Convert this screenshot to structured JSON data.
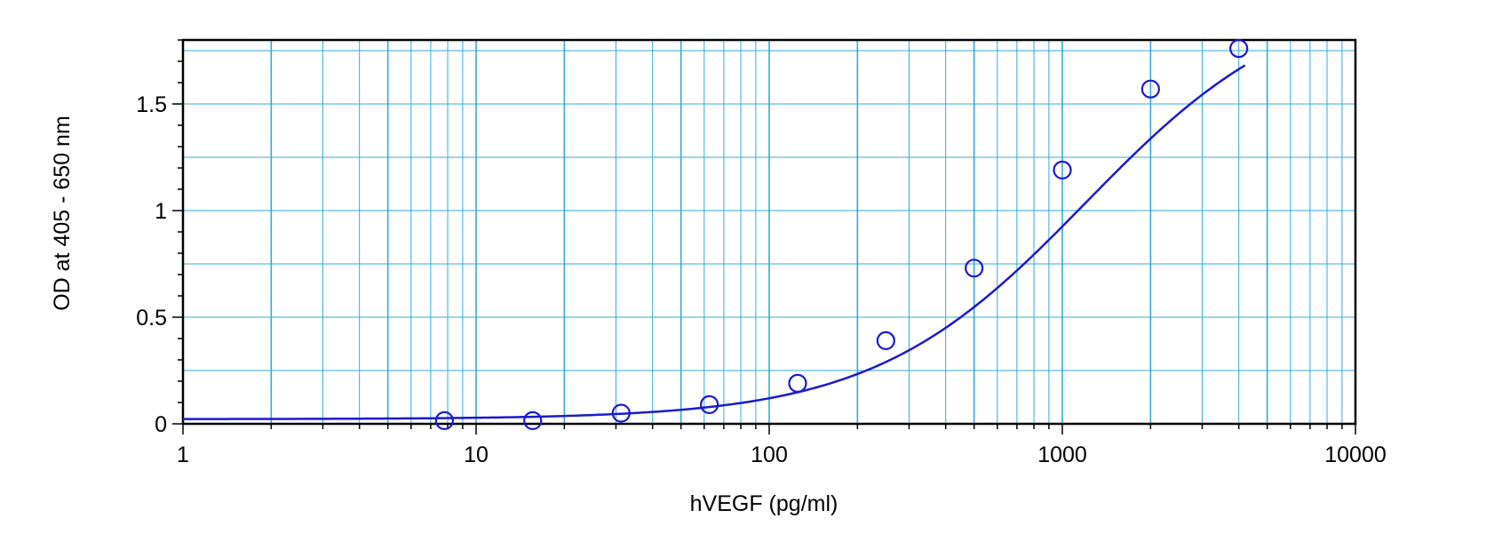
{
  "chart_data": {
    "type": "scatter",
    "title": "",
    "xlabel": "hVEGF (pg/ml)",
    "ylabel": "OD at 405 - 650 nm",
    "x_scale": "log",
    "xlim": [
      1,
      10000
    ],
    "ylim": [
      0,
      1.8
    ],
    "x_ticks": [
      1,
      10,
      100,
      1000,
      10000
    ],
    "x_tick_labels": [
      "1",
      "10",
      "100",
      "1000",
      "10000"
    ],
    "y_ticks": [
      0,
      0.5,
      1,
      1.5
    ],
    "y_tick_labels": [
      "0",
      "0.5",
      "1",
      "1.5"
    ],
    "grid": true,
    "legend": "none",
    "series": [
      {
        "x": [
          7.8,
          15.6,
          31.25,
          62.5,
          125,
          250,
          500,
          1000,
          2000,
          4000
        ],
        "y": [
          0.015,
          0.015,
          0.05,
          0.09,
          0.19,
          0.39,
          0.73,
          1.19,
          1.57,
          1.76
        ]
      }
    ],
    "fit_curve": {
      "model": "4PL",
      "bottom": 0.022,
      "top": 2.05,
      "ec50": 1200,
      "hill": 1.2
    },
    "colors": {
      "series": "#1a1acc",
      "grid": "#33a9dd",
      "frame": "#000000"
    }
  }
}
